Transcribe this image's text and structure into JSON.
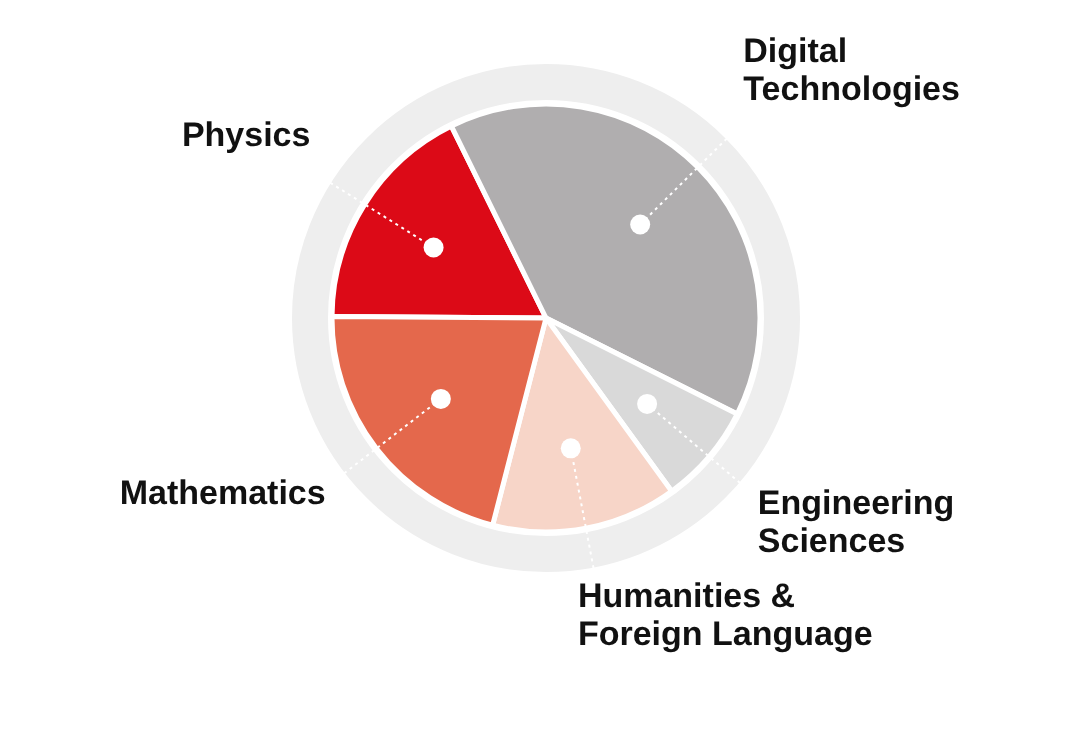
{
  "chart_data": {
    "type": "pie",
    "categories": [
      "Physics",
      "Digital Technologies",
      "Engineering Sciences",
      "Humanities & Foreign Language",
      "Mathematics"
    ],
    "values": [
      17.6,
      39.7,
      7.6,
      14.0,
      21.1
    ],
    "colors": [
      "#dc0a17",
      "#b0aeaf",
      "#d9d9d9",
      "#f7d5c8",
      "#e4684c"
    ],
    "legend": false
  }
}
